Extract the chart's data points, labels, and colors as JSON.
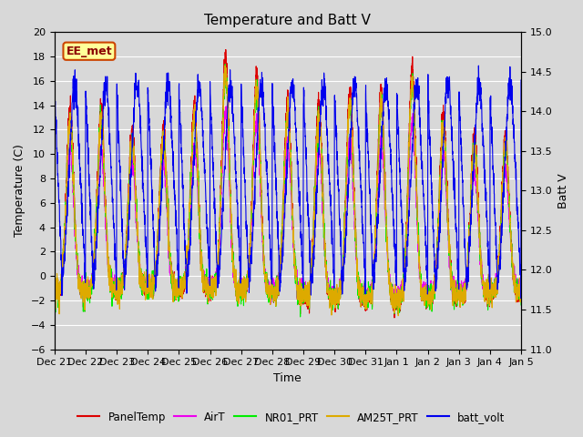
{
  "title": "Temperature and Batt V",
  "xlabel": "Time",
  "ylabel_left": "Temperature (C)",
  "ylabel_right": "Batt V",
  "annotation": "EE_met",
  "ylim_left": [
    -6,
    20
  ],
  "ylim_right": [
    11.0,
    15.0
  ],
  "yticks_left": [
    -6,
    -4,
    -2,
    0,
    2,
    4,
    6,
    8,
    10,
    12,
    14,
    16,
    18,
    20
  ],
  "yticks_right": [
    11.0,
    11.5,
    12.0,
    12.5,
    13.0,
    13.5,
    14.0,
    14.5,
    15.0
  ],
  "colors": {
    "PanelTemp": "#dd0000",
    "AirT": "#ee00ee",
    "NR01_PRT": "#00ee00",
    "AM25T_PRT": "#ddaa00",
    "batt_volt": "#0000ee"
  },
  "legend_labels": [
    "PanelTemp",
    "AirT",
    "NR01_PRT",
    "AM25T_PRT",
    "batt_volt"
  ],
  "background_color": "#d8d8d8",
  "plot_bg_color": "#d8d8d8",
  "grid_color": "#ffffff",
  "title_fontsize": 11,
  "label_fontsize": 9,
  "tick_fontsize": 8,
  "line_width": 0.8,
  "n_points": 3000,
  "n_days": 15
}
